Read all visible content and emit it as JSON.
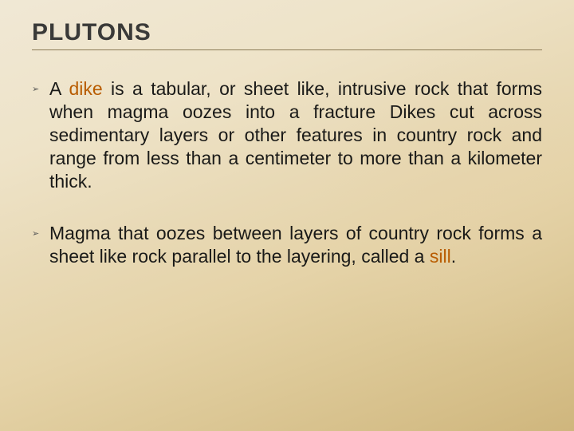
{
  "title": "PLUTONS",
  "keyword_color": "#b85c00",
  "bullets": [
    {
      "marker": "➢",
      "segments": [
        {
          "text": "A ",
          "keyword": false
        },
        {
          "text": "dike",
          "keyword": true
        },
        {
          "text": " is a tabular, or sheet like, intrusive rock that forms when magma oozes into a fracture Dikes cut across sedimentary layers or other features in country rock and range from less than a centimeter to more than a kilometer thick.",
          "keyword": false
        }
      ]
    },
    {
      "marker": "➢",
      "segments": [
        {
          "text": "Magma that oozes between layers of country rock forms a sheet like rock parallel to the layering, called a ",
          "keyword": false
        },
        {
          "text": "sill",
          "keyword": true
        },
        {
          "text": ".",
          "keyword": false
        }
      ]
    }
  ]
}
